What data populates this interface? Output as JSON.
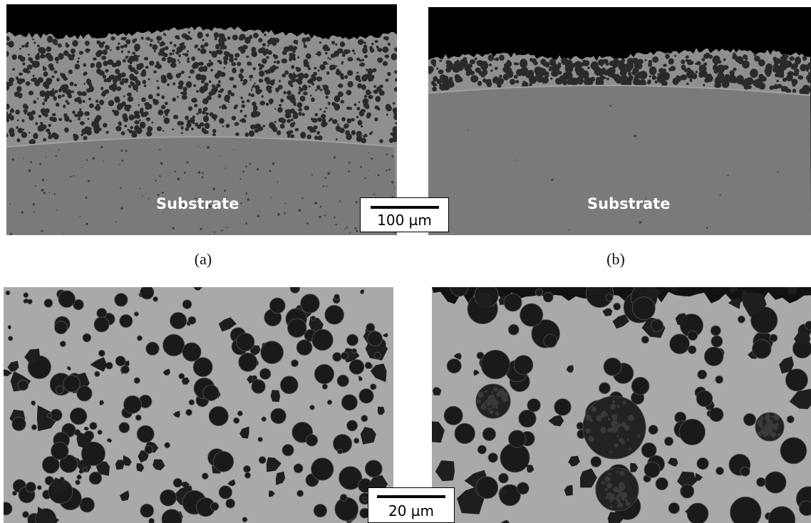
{
  "panels": {
    "a": {
      "caption": "(a)",
      "substrate_label": "Substrate"
    },
    "b": {
      "caption": "(b)",
      "substrate_label": "Substrate"
    }
  },
  "scale_bars": {
    "top": "100 µm",
    "bottom": "20 µm"
  },
  "colors": {
    "void": "#000000",
    "coating_matrix": "#8f8f8f",
    "substrate": "#7a7a7a",
    "particle": "#2a2a2a",
    "closeup_matrix": "#a9a9a9"
  }
}
